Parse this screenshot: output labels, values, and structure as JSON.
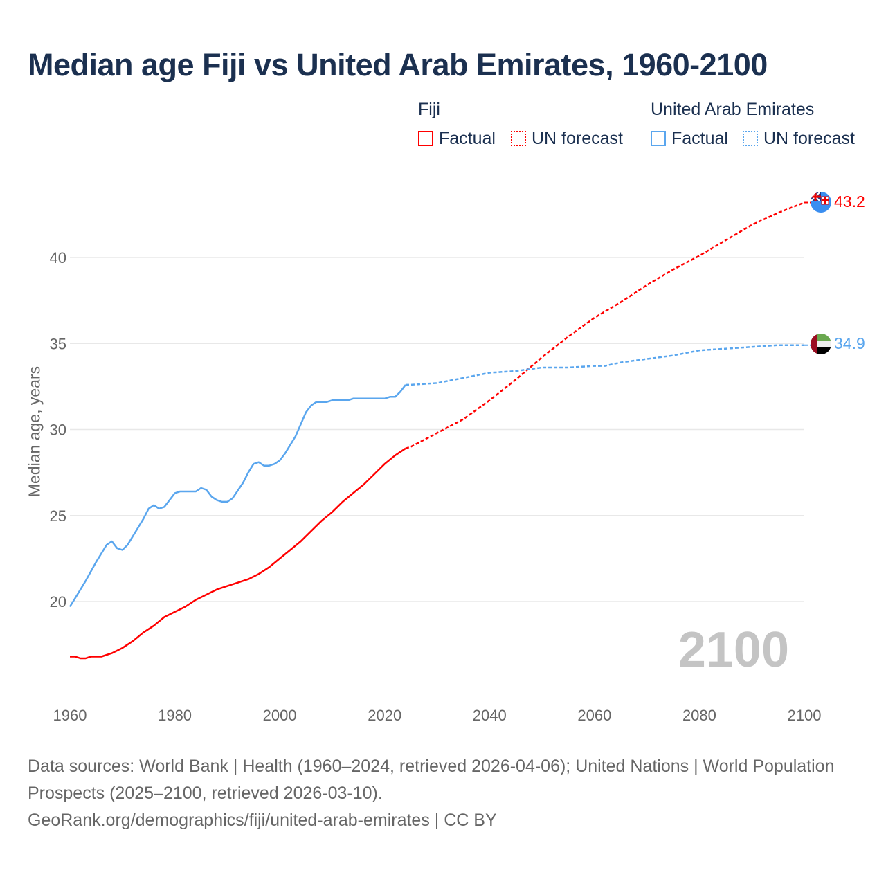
{
  "title": "Median age Fiji vs United Arab Emirates, 1960-2100",
  "legend": {
    "fiji": {
      "name": "Fiji",
      "factual": "Factual",
      "forecast": "UN forecast",
      "color": "#ff0000"
    },
    "uae": {
      "name": "United Arab Emirates",
      "factual": "Factual",
      "forecast": "UN forecast",
      "color": "#5aa6ee"
    }
  },
  "year_label": "2100",
  "sources": {
    "line1": "Data sources: World Bank | Health (1960–2024, retrieved 2026-04-06); United Nations | World Population Prospects (2025–2100, retrieved 2026-03-10).",
    "line2": "GeoRank.org/demographics/fiji/united-arab-emirates | CC BY"
  },
  "chart_data": {
    "type": "line",
    "title": "Median age Fiji vs United Arab Emirates, 1960-2100",
    "xlabel": "",
    "ylabel": "Median age, years",
    "xlim": [
      1960,
      2100
    ],
    "ylim": [
      15.5,
      45
    ],
    "xticks": [
      "1960",
      "1980",
      "2000",
      "2020",
      "2040",
      "2060",
      "2080",
      "2100"
    ],
    "yticks": [
      "20",
      "25",
      "30",
      "35",
      "40"
    ],
    "grid": true,
    "legend_position": "top-right",
    "series": [
      {
        "name": "Fiji",
        "type": "Factual",
        "color": "#ff0000",
        "x": [
          1960,
          1961,
          1962,
          1963,
          1964,
          1966,
          1968,
          1970,
          1972,
          1974,
          1976,
          1978,
          1980,
          1982,
          1984,
          1986,
          1988,
          1990,
          1992,
          1994,
          1996,
          1998,
          2000,
          2002,
          2004,
          2006,
          2008,
          2010,
          2012,
          2014,
          2016,
          2018,
          2020,
          2022,
          2024
        ],
        "y": [
          16.8,
          16.8,
          16.7,
          16.7,
          16.8,
          16.8,
          17.0,
          17.3,
          17.7,
          18.2,
          18.6,
          19.1,
          19.4,
          19.7,
          20.1,
          20.4,
          20.7,
          20.9,
          21.1,
          21.3,
          21.6,
          22.0,
          22.5,
          23.0,
          23.5,
          24.1,
          24.7,
          25.2,
          25.8,
          26.3,
          26.8,
          27.4,
          28.0,
          28.5,
          28.9
        ]
      },
      {
        "name": "Fiji",
        "type": "UN forecast",
        "color": "#ff0000",
        "x": [
          2024,
          2025,
          2030,
          2035,
          2040,
          2045,
          2050,
          2055,
          2060,
          2065,
          2070,
          2075,
          2080,
          2085,
          2090,
          2095,
          2100
        ],
        "y": [
          28.9,
          29.0,
          29.8,
          30.6,
          31.7,
          32.9,
          34.2,
          35.4,
          36.5,
          37.4,
          38.4,
          39.3,
          40.1,
          41.0,
          41.9,
          42.6,
          43.2
        ]
      },
      {
        "name": "United Arab Emirates",
        "type": "Factual",
        "color": "#5aa6ee",
        "x": [
          1960,
          1962,
          1963,
          1965,
          1967,
          1968,
          1969,
          1970,
          1971,
          1973,
          1974,
          1975,
          1976,
          1977,
          1978,
          1979,
          1980,
          1981,
          1984,
          1985,
          1986,
          1987,
          1988,
          1989,
          1990,
          1991,
          1993,
          1994,
          1995,
          1996,
          1997,
          1998,
          1999,
          2000,
          2001,
          2003,
          2004,
          2005,
          2006,
          2007,
          2009,
          2010,
          2013,
          2014,
          2020,
          2021,
          2022,
          2023,
          2024
        ],
        "y": [
          19.7,
          20.7,
          21.2,
          22.3,
          23.3,
          23.5,
          23.1,
          23.0,
          23.3,
          24.3,
          24.8,
          25.4,
          25.6,
          25.4,
          25.5,
          25.9,
          26.3,
          26.4,
          26.4,
          26.6,
          26.5,
          26.1,
          25.9,
          25.8,
          25.8,
          26.0,
          26.9,
          27.5,
          28.0,
          28.1,
          27.9,
          27.9,
          28.0,
          28.2,
          28.6,
          29.6,
          30.3,
          31.0,
          31.4,
          31.6,
          31.6,
          31.7,
          31.7,
          31.8,
          31.8,
          31.9,
          31.9,
          32.2,
          32.6
        ]
      },
      {
        "name": "United Arab Emirates",
        "type": "UN forecast",
        "color": "#5aa6ee",
        "x": [
          2024,
          2025,
          2030,
          2035,
          2040,
          2045,
          2050,
          2055,
          2060,
          2062,
          2065,
          2070,
          2075,
          2080,
          2085,
          2090,
          2095,
          2100
        ],
        "y": [
          32.6,
          32.6,
          32.7,
          33.0,
          33.3,
          33.4,
          33.6,
          33.6,
          33.7,
          33.7,
          33.9,
          34.1,
          34.3,
          34.6,
          34.7,
          34.8,
          34.9,
          34.9
        ]
      }
    ],
    "end_labels": {
      "fiji": "43.2",
      "uae": "34.9"
    }
  }
}
